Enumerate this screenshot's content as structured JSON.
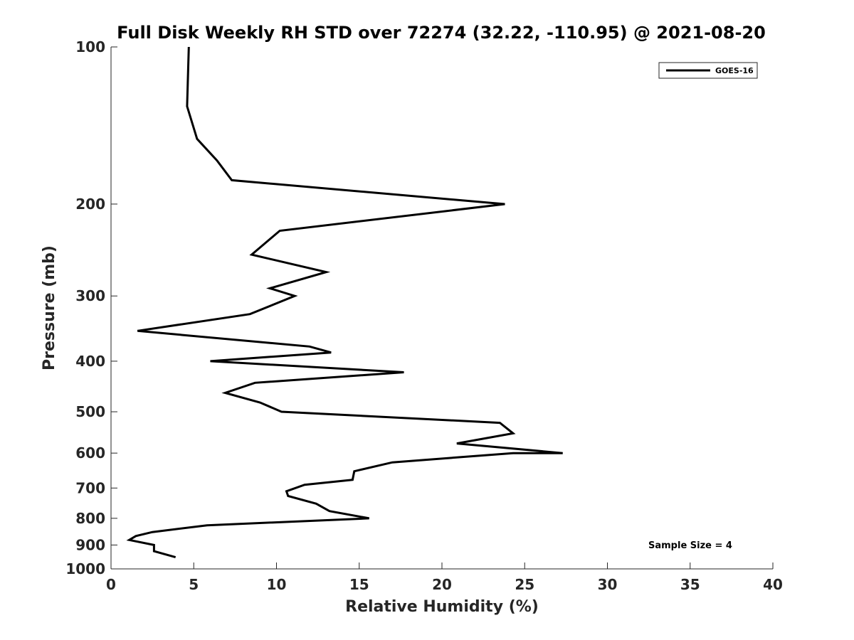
{
  "chart_data": {
    "type": "line",
    "title": "Full Disk Weekly RH STD over 72274 (32.22, -110.95) @ 2021-08-20",
    "xlabel": "Relative Humidity (%)",
    "ylabel": "Pressure (mb)",
    "xlim": [
      0,
      40
    ],
    "ylim": [
      100,
      1000
    ],
    "yscale": "log",
    "y_reversed": true,
    "xticks": [
      0,
      5,
      10,
      15,
      20,
      25,
      30,
      35,
      40
    ],
    "xtick_labels": [
      "0",
      "5",
      "10",
      "15",
      "20",
      "25",
      "30",
      "35",
      "40"
    ],
    "yticks": [
      100,
      200,
      300,
      400,
      500,
      600,
      700,
      800,
      900,
      1000
    ],
    "ytick_labels": [
      "100",
      "200",
      "300",
      "400",
      "500",
      "600",
      "700",
      "800",
      "900",
      "1000"
    ],
    "grid": false,
    "legend_position": "top-right",
    "annotation": "Sample Size = 4",
    "series": [
      {
        "name": "GOES-16",
        "color": "#000000",
        "x": [
          4.7,
          4.6,
          5.2,
          6.4,
          7.3,
          23.8,
          10.2,
          8.5,
          13.0,
          9.6,
          11.1,
          8.4,
          1.6,
          12.0,
          13.3,
          6.0,
          17.7,
          8.7,
          6.9,
          9.0,
          10.3,
          23.5,
          24.3,
          20.9,
          27.3,
          24.3,
          17.0,
          14.7,
          14.6,
          11.7,
          10.6,
          10.7,
          12.4,
          13.2,
          15.6,
          5.8,
          2.5,
          1.5,
          1.1,
          2.6,
          2.6,
          3.9
        ],
        "y": [
          100,
          130,
          150,
          165,
          180,
          200,
          225,
          250,
          270,
          290,
          300,
          325,
          350,
          375,
          385,
          400,
          420,
          440,
          460,
          480,
          500,
          525,
          550,
          575,
          600,
          600,
          625,
          650,
          675,
          690,
          710,
          725,
          750,
          775,
          800,
          825,
          850,
          865,
          880,
          900,
          925,
          950
        ]
      }
    ]
  }
}
